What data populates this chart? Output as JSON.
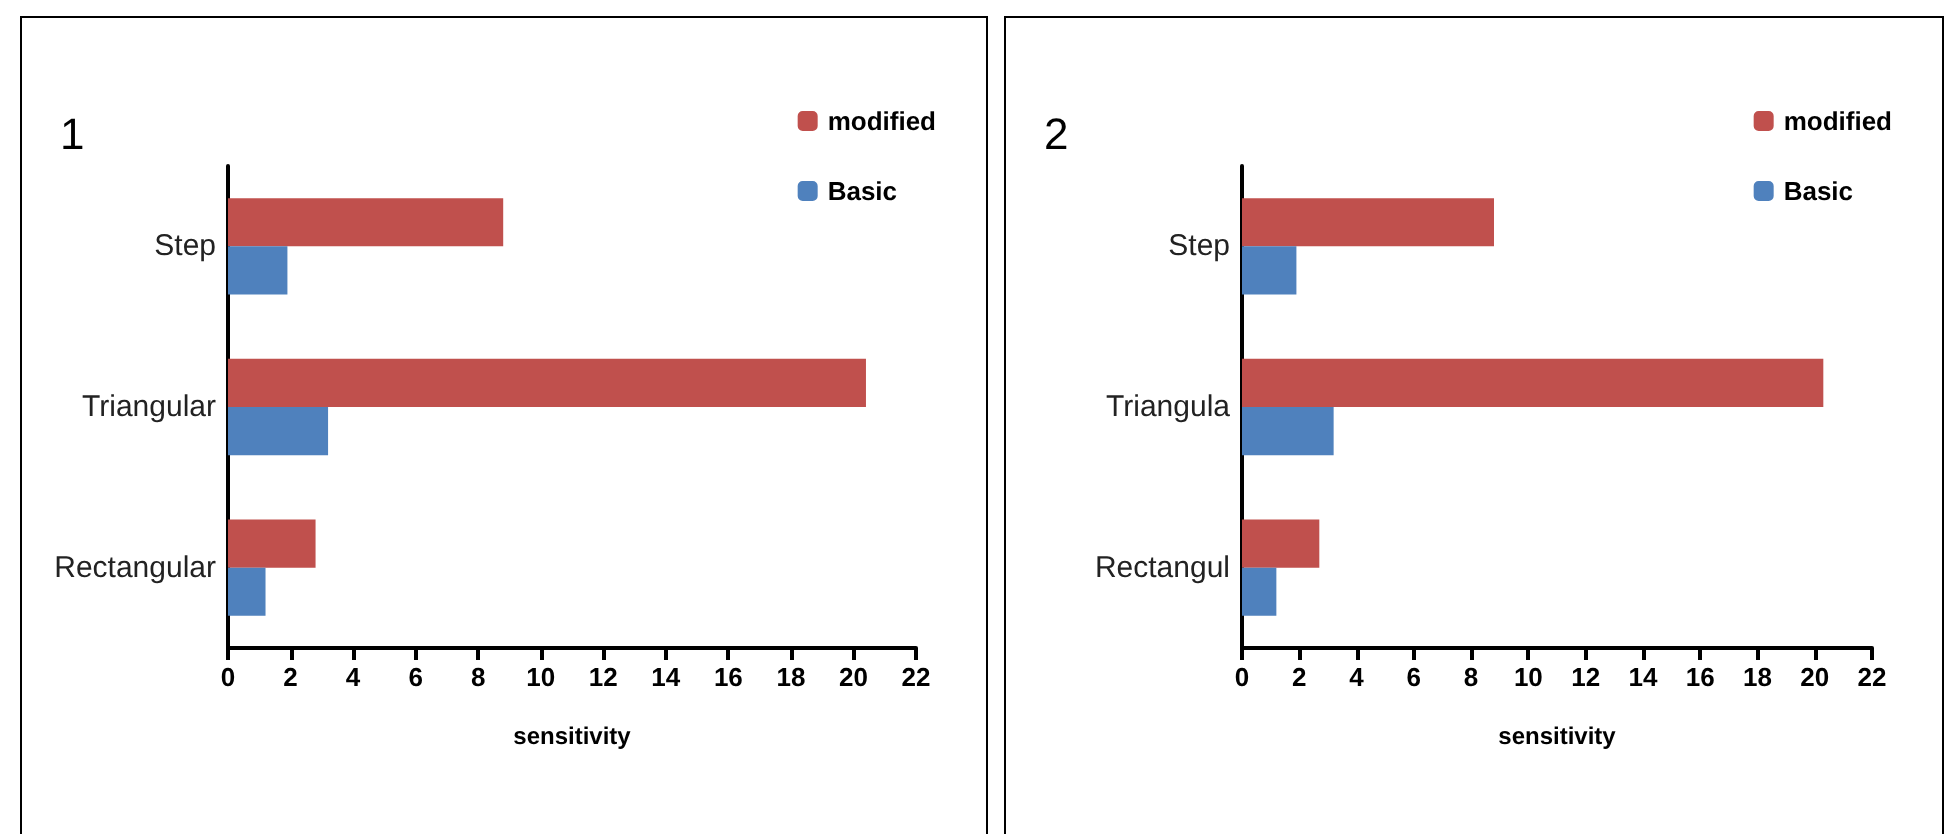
{
  "chart_data": [
    {
      "type": "bar",
      "title": "1",
      "orientation": "horizontal",
      "categories": [
        "Step",
        "Triangular",
        "Rectangular"
      ],
      "xlabel": "sensitivity",
      "xlim": [
        0,
        22
      ],
      "xticks": [
        0,
        2,
        4,
        6,
        8,
        10,
        12,
        14,
        16,
        18,
        20,
        22
      ],
      "grid": false,
      "legend": "top right",
      "series": [
        {
          "name": "modified",
          "color": "#c0504d",
          "values": [
            8.8,
            20.4,
            2.8
          ]
        },
        {
          "name": "Basic",
          "color": "#4f81bd",
          "values": [
            1.9,
            3.2,
            1.2
          ]
        }
      ]
    },
    {
      "type": "bar",
      "title": "2",
      "orientation": "horizontal",
      "categories": [
        "Step",
        "Triangula",
        "Rectangul"
      ],
      "xlabel": "sensitivity",
      "xlim": [
        0,
        22
      ],
      "xticks": [
        0,
        2,
        4,
        6,
        8,
        10,
        12,
        14,
        16,
        18,
        20,
        22
      ],
      "grid": false,
      "legend": "top right",
      "series": [
        {
          "name": "modified",
          "color": "#c0504d",
          "values": [
            8.8,
            20.3,
            2.7
          ]
        },
        {
          "name": "Basic",
          "color": "#4f81bd",
          "values": [
            1.9,
            3.2,
            1.2
          ]
        }
      ]
    }
  ]
}
